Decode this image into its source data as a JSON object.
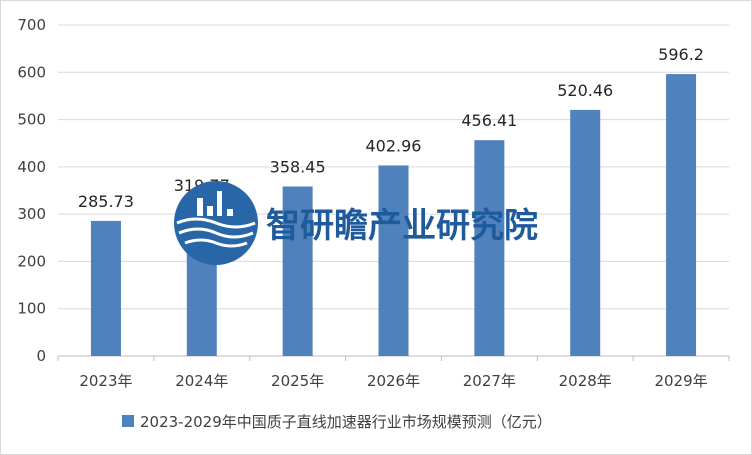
{
  "chart_data": {
    "type": "bar",
    "categories": [
      "2023年",
      "2024年",
      "2025年",
      "2026年",
      "2027年",
      "2028年",
      "2029年"
    ],
    "series": [
      {
        "name": "2023-2029年中国质子直线加速器行业市场规模预测（亿元）",
        "values": [
          285.73,
          319.77,
          358.45,
          402.96,
          456.41,
          520.46,
          596.2
        ],
        "labels": [
          "285.73",
          "319.77",
          "358.45",
          "402.96",
          "456.41",
          "520.46",
          "596.2"
        ],
        "color": "#4f81bd"
      }
    ],
    "ylim": [
      0,
      700
    ],
    "yticks": [
      0,
      100,
      200,
      300,
      400,
      500,
      600,
      700
    ],
    "grid": true,
    "legend_position": "bottom"
  },
  "watermark": {
    "text": "智研瞻产业研究院",
    "icon": "city-skyline-logo-icon",
    "color": "#1f5b9c"
  }
}
